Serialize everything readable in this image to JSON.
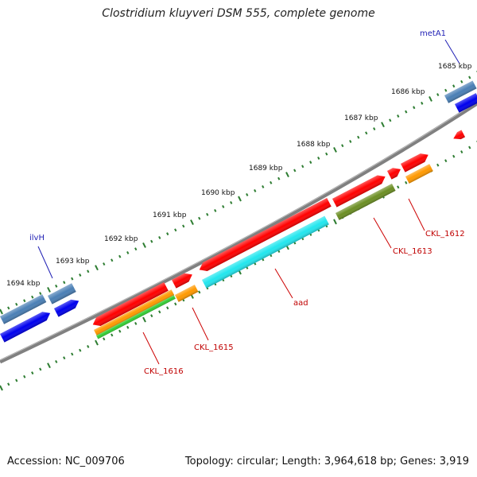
{
  "title": "Clostridium kluyveri DSM 555, complete genome",
  "accession": "Accession: NC_009706",
  "summary": "Topology: circular; Length: 3,964,618 bp; Genes: 3,919",
  "ruler_labels": [
    "1685 kbp",
    "1686 kbp",
    "1687 kbp",
    "1688 kbp",
    "1689 kbp",
    "1690 kbp",
    "1691 kbp",
    "1692 kbp",
    "1693 kbp",
    "1694 kbp"
  ],
  "gene_labels": [
    {
      "text": "metA1",
      "color": "#1f1fb4"
    },
    {
      "text": "ilvH",
      "color": "#1f1fb4"
    },
    {
      "text": "CKL_1612",
      "color": "#c00000"
    },
    {
      "text": "CKL_1613",
      "color": "#c00000"
    },
    {
      "text": "aad",
      "color": "#c00000"
    },
    {
      "text": "CKL_1615",
      "color": "#c00000"
    },
    {
      "text": "CKL_1616",
      "color": "#c00000"
    }
  ],
  "colors": {
    "backbone": "#808080",
    "tick": "#2e7d32",
    "red_feature": "#ff0000",
    "blue_feature": "#0000ee",
    "steelblue_feature": "#4a7fb5",
    "cyan_feature": "#22e6ee",
    "orange_feature": "#ff9900",
    "olive_feature": "#6b8e23",
    "green_feature": "#33cc33"
  }
}
